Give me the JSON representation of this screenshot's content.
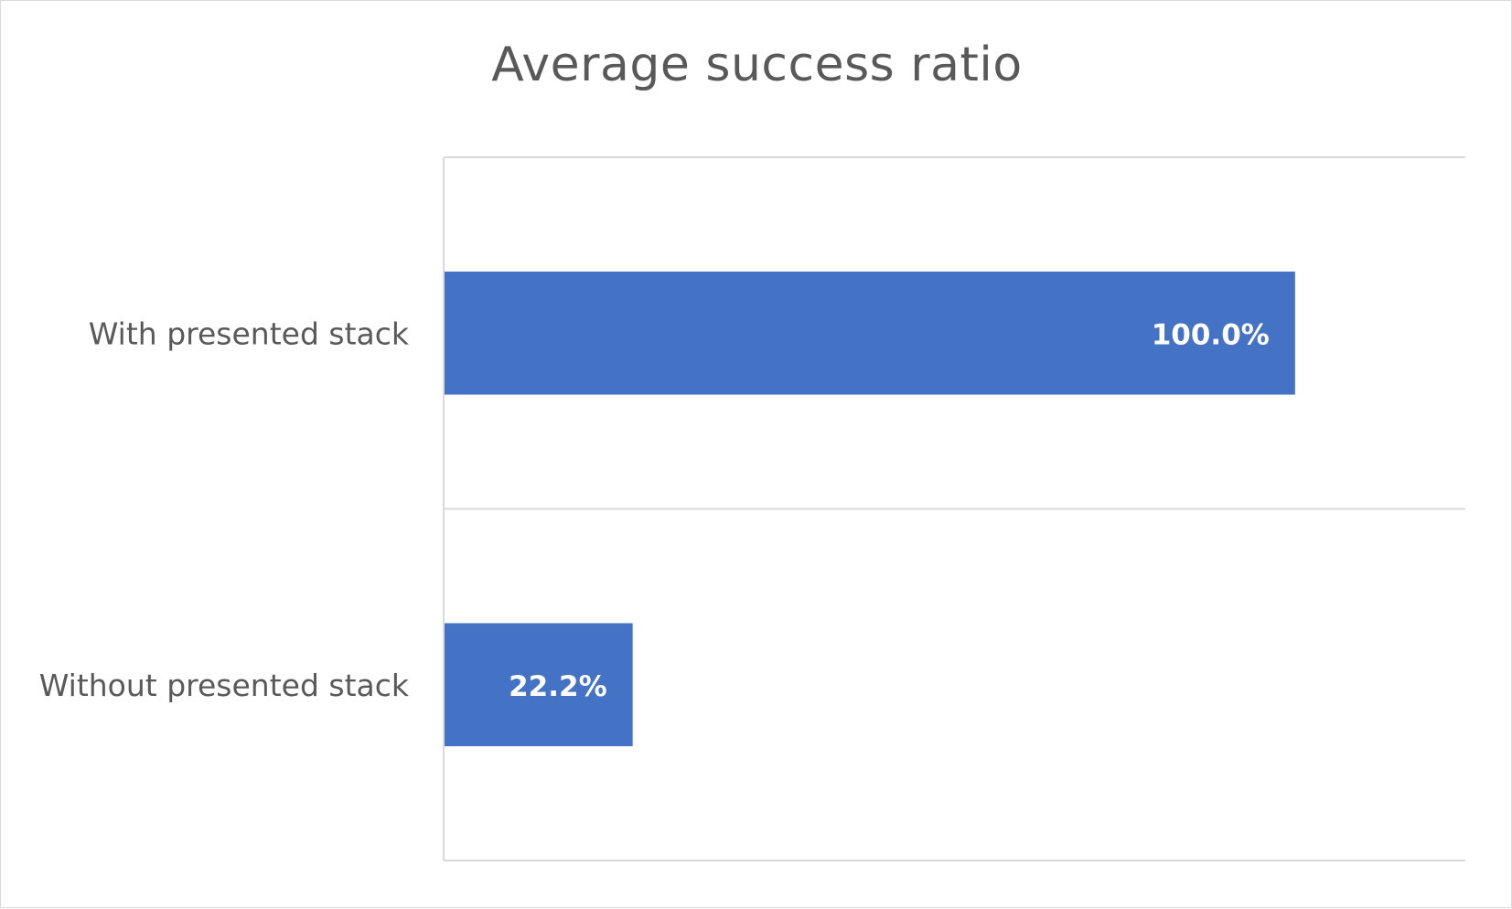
{
  "chart_data": {
    "type": "bar",
    "orientation": "horizontal",
    "title": "Average success ratio",
    "categories": [
      "With presented stack",
      "Without presented stack"
    ],
    "values": [
      100.0,
      22.2
    ],
    "data_labels": [
      "100.0%",
      "22.2%"
    ],
    "xlim": [
      0,
      120
    ],
    "value_axis_labels_shown": false,
    "legend": "none",
    "grid": true,
    "colors": {
      "bar": "#4472C4",
      "gridline": "#D9D9D9",
      "text": "#595959",
      "data_label": "#FFFFFF"
    }
  }
}
